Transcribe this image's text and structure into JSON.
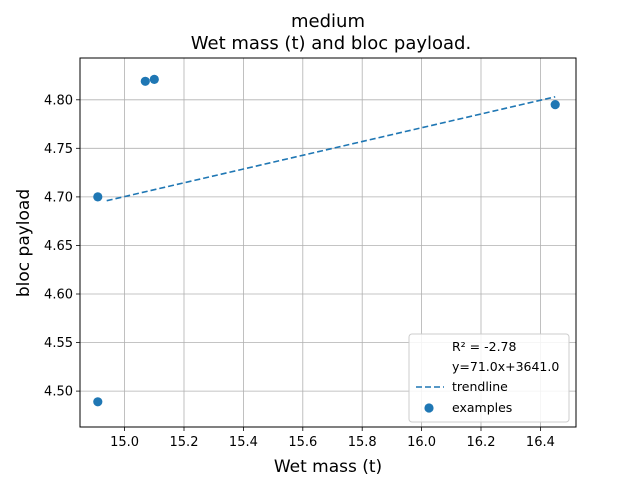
{
  "chart_data": {
    "type": "scatter",
    "title_line1": "medium",
    "title_line2": "Wet mass (t) and bloc payload.",
    "xlabel": "Wet mass (t)",
    "ylabel": "bloc payload",
    "xlim": [
      14.85,
      16.52
    ],
    "ylim": [
      4.463,
      4.843
    ],
    "xticks": [
      15.0,
      15.2,
      15.4,
      15.6,
      15.8,
      16.0,
      16.2,
      16.4
    ],
    "xtick_labels": [
      "15.0",
      "15.2",
      "15.4",
      "15.6",
      "15.8",
      "16.0",
      "16.2",
      "16.4"
    ],
    "yticks": [
      4.5,
      4.55,
      4.6,
      4.65,
      4.7,
      4.75,
      4.8
    ],
    "ytick_labels": [
      "4.50",
      "4.55",
      "4.60",
      "4.65",
      "4.70",
      "4.75",
      "4.80"
    ],
    "grid": true,
    "legend_position": "lower-right",
    "series": [
      {
        "name": "examples",
        "kind": "scatter",
        "color": "#1f77b4",
        "points": [
          {
            "x": 14.91,
            "y": 4.489
          },
          {
            "x": 14.91,
            "y": 4.7
          },
          {
            "x": 15.07,
            "y": 4.819
          },
          {
            "x": 15.1,
            "y": 4.821
          },
          {
            "x": 16.45,
            "y": 4.795
          }
        ]
      },
      {
        "name": "trendline",
        "kind": "line",
        "style": "dashed",
        "color": "#1f77b4",
        "points": [
          {
            "x": 14.94,
            "y": 4.696
          },
          {
            "x": 16.45,
            "y": 4.803
          }
        ]
      }
    ],
    "legend": {
      "r2_text": "R² = -2.78",
      "equation_text": "y=71.0x+3641.0",
      "trendline_label": "trendline",
      "examples_label": "examples"
    }
  }
}
